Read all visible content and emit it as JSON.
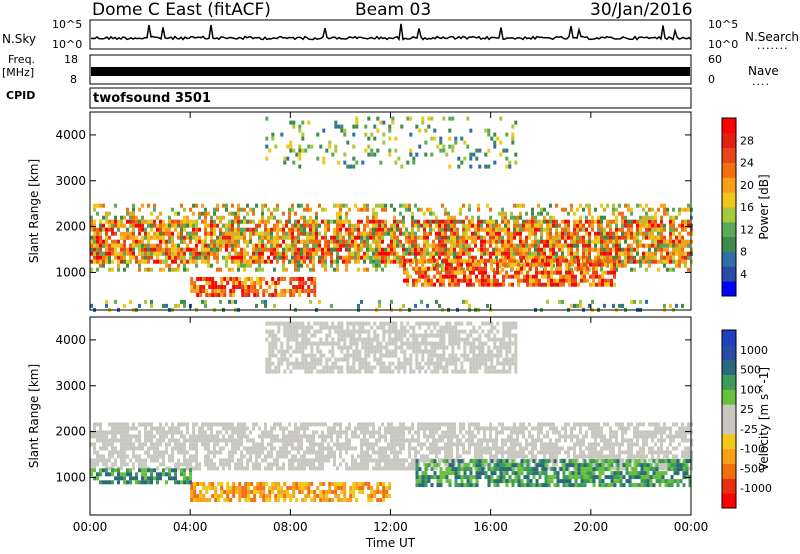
{
  "header": {
    "station": "Dome C East (fitACF)",
    "beam": "Beam 03",
    "date": "30/Jan/2016"
  },
  "top_panels": {
    "nsky_label": "N.Sky",
    "nsky_ticks": [
      "10^5",
      "10^0"
    ],
    "nsearch_label": "N.Search",
    "nsearch_ticks": [
      "10^5",
      "10^0"
    ],
    "nsearch_legend": ".......",
    "freq_label": "Freq.",
    "freq_unit": "[MHz]",
    "freq_ticks": [
      "18",
      "8"
    ],
    "nave_label": "Nave",
    "nave_ticks": [
      "60",
      "0"
    ],
    "nave_legend": "....",
    "cpid_label": "CPID",
    "cpid_value": "twofsound 3501"
  },
  "chart_data": [
    {
      "type": "heatmap",
      "name": "power",
      "ylabel": "Slant Range [km]",
      "yticks": [
        "1000",
        "2000",
        "3000",
        "4000"
      ],
      "ylim": [
        180,
        4500
      ],
      "xlim": [
        0,
        24
      ],
      "colorbar_label": "Power [dB]",
      "colorbar_ticks": [
        "28",
        "24",
        "20",
        "16",
        "12",
        "8",
        "4"
      ],
      "colors": [
        "#0000ff",
        "#2a4aa8",
        "#2e6fa8",
        "#3d8a4a",
        "#5aaa5a",
        "#a8c83c",
        "#f0c818",
        "#f8a018",
        "#f07010",
        "#e84818",
        "#e02010",
        "#ff0000"
      ],
      "bands": [
        {
          "t0": 0.0,
          "t1": 24.0,
          "r0": 1250,
          "r1": 2150,
          "level": "high"
        },
        {
          "t0": 0.0,
          "t1": 24.0,
          "r0": 1100,
          "r1": 2500,
          "level": "mid"
        },
        {
          "t0": 4.0,
          "t1": 9.0,
          "r0": 550,
          "r1": 900,
          "level": "high"
        },
        {
          "t0": 12.5,
          "t1": 21.0,
          "r0": 750,
          "r1": 1300,
          "level": "high"
        },
        {
          "t0": 7.0,
          "t1": 17.0,
          "r0": 3300,
          "r1": 4400,
          "level": "low"
        },
        {
          "t0": 0.0,
          "t1": 24.0,
          "r0": 180,
          "r1": 400,
          "level": "low"
        }
      ]
    },
    {
      "type": "heatmap",
      "name": "velocity",
      "ylabel": "Slant Range [km]",
      "yticks": [
        "1000",
        "2000",
        "3000",
        "4000"
      ],
      "ylim": [
        180,
        4500
      ],
      "xlim": [
        0,
        24
      ],
      "xticks": [
        "00:00",
        "04:00",
        "08:00",
        "12:00",
        "16:00",
        "20:00",
        "00:00"
      ],
      "xlabel": "Time UT",
      "colorbar_label": "Velocity [m s^-1]",
      "colorbar_ticks": [
        "1000",
        "500",
        "100",
        "25",
        "-25",
        "-100",
        "-500",
        "-1000"
      ],
      "colors": [
        "#ff0000",
        "#e83010",
        "#f07010",
        "#f8a018",
        "#f0c818",
        "#c8c8c0",
        "#c8c8c0",
        "#66c03c",
        "#3c9a5a",
        "#2a6a7a",
        "#2a4aa8",
        "#2040c0"
      ],
      "bands": [
        {
          "t0": 0.0,
          "t1": 24.0,
          "r0": 1200,
          "r1": 2200,
          "level": "zero"
        },
        {
          "t0": 13.0,
          "t1": 24.0,
          "r0": 800,
          "r1": 1400,
          "level": "pos"
        },
        {
          "t0": 4.0,
          "t1": 12.0,
          "r0": 550,
          "r1": 900,
          "level": "neg"
        },
        {
          "t0": 0.0,
          "t1": 4.0,
          "r0": 900,
          "r1": 1200,
          "level": "pos"
        },
        {
          "t0": 7.0,
          "t1": 17.0,
          "r0": 3300,
          "r1": 4400,
          "level": "zero"
        }
      ]
    }
  ]
}
